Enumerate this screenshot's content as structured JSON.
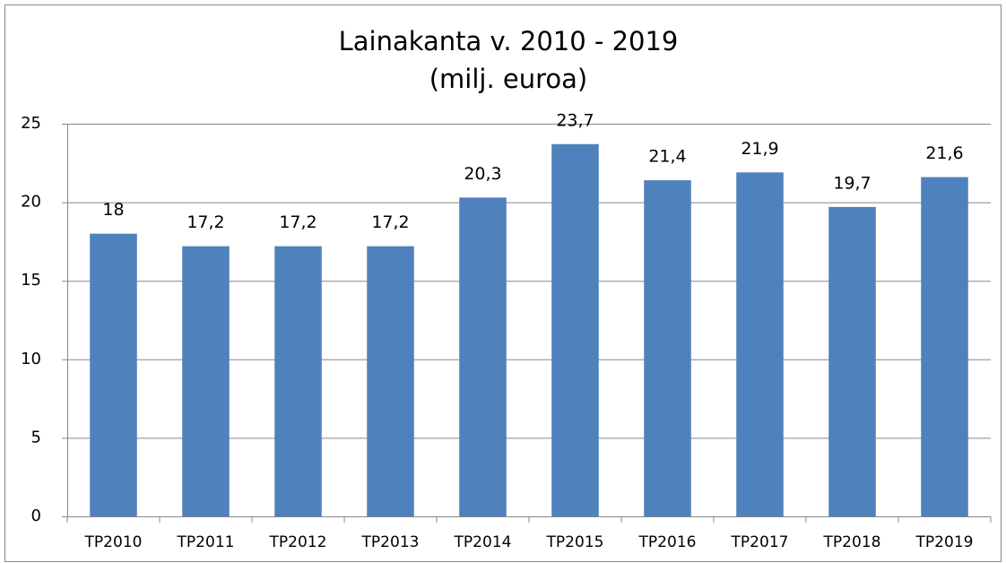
{
  "chart_data": {
    "type": "bar",
    "title": [
      "Lainakanta v. 2010 - 2019",
      "(milj. euroa)"
    ],
    "categories": [
      "TP2010",
      "TP2011",
      "TP2012",
      "TP2013",
      "TP2014",
      "TP2015",
      "TP2016",
      "TP2017",
      "TP2018",
      "TP2019"
    ],
    "values": [
      18,
      17.2,
      17.2,
      17.2,
      20.3,
      23.7,
      21.4,
      21.9,
      19.7,
      21.6
    ],
    "value_labels": [
      "18",
      "17,2",
      "17,2",
      "17,2",
      "20,3",
      "23,7",
      "21,4",
      "21,9",
      "19,7",
      "21,6"
    ],
    "color": "#4f81bd",
    "ylim": [
      0,
      25
    ],
    "yticks": [
      0,
      5,
      10,
      15,
      20,
      25
    ],
    "grid": true
  }
}
